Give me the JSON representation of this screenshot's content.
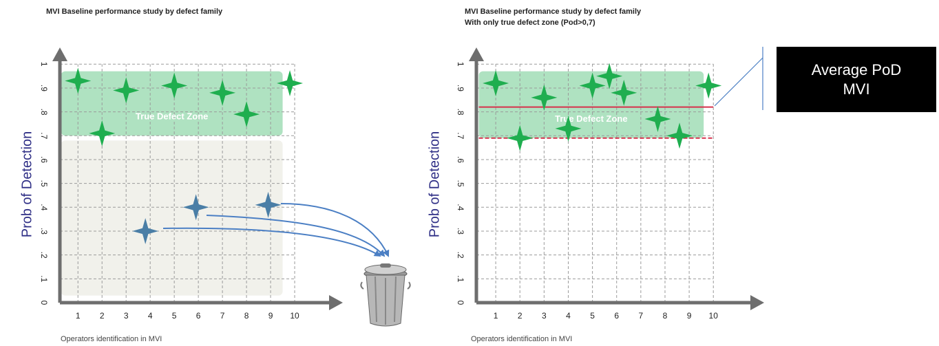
{
  "chart_data": [
    {
      "type": "scatter",
      "title": "MVI Baseline performance study by defect family",
      "x_label": "Operators identification in MVI",
      "y_label": "Prob of Detection",
      "xlim": [
        0.25,
        12
      ],
      "ylim": [
        0,
        1.07
      ],
      "xticks": [
        1,
        2,
        3,
        4,
        5,
        6,
        7,
        8,
        9,
        10
      ],
      "yticks": [
        0,
        {
          "value": 0.1,
          "label": ".1"
        },
        {
          "value": 0.2,
          "label": ".2"
        },
        {
          "value": 0.3,
          "label": ".3"
        },
        {
          "value": 0.4,
          "label": ".4"
        },
        {
          "value": 0.5,
          "label": ".5"
        },
        {
          "value": 0.6,
          "label": ".6"
        },
        {
          "value": 0.7,
          "label": ".7"
        },
        {
          "value": 0.8,
          "label": ".8"
        },
        {
          "value": 0.9,
          "label": ".9"
        },
        1
      ],
      "grid": true,
      "zones": [
        {
          "color": "#f0f0e9",
          "xlim": [
            0.3,
            9.5
          ],
          "ylim": [
            0.03,
            0.68
          ]
        },
        {
          "label": "True Defect Zone",
          "color": "#a6dfba",
          "xlim": [
            0.3,
            9.5
          ],
          "ylim": [
            0.7,
            0.97
          ]
        }
      ],
      "series": [
        {
          "color": "#1fae4f",
          "x": [
            1,
            2,
            3,
            5,
            7,
            8,
            9.8
          ],
          "values": [
            0.93,
            0.71,
            0.89,
            0.91,
            0.88,
            0.79,
            0.92
          ]
        },
        {
          "color": "#4a7ea6",
          "x": [
            3.8,
            5.9,
            8.9
          ],
          "values": [
            0.3,
            0.4,
            0.41
          ]
        }
      ]
    },
    {
      "type": "scatter",
      "title": "MVI Baseline performance study by defect family",
      "subtitle": "With only true defect zone (Pod>0,7)",
      "x_label": "Operators identification in MVI",
      "y_label": "Prob of Detection",
      "xlim": [
        0.2,
        12.1
      ],
      "ylim": [
        0,
        1.07
      ],
      "xticks": [
        1,
        2,
        3,
        4,
        5,
        6,
        7,
        8,
        9,
        10
      ],
      "yticks": [
        0,
        {
          "value": 0.1,
          "label": ".1"
        },
        {
          "value": 0.2,
          "label": ".2"
        },
        {
          "value": 0.3,
          "label": ".3"
        },
        {
          "value": 0.4,
          "label": ".4"
        },
        {
          "value": 0.5,
          "label": ".5"
        },
        {
          "value": 0.6,
          "label": ".6"
        },
        {
          "value": 0.7,
          "label": ".7"
        },
        {
          "value": 0.8,
          "label": ".8"
        },
        {
          "value": 0.9,
          "label": ".9"
        },
        1
      ],
      "grid": true,
      "zones": [
        {
          "label": "True Defect Zone",
          "color": "#a6dfba",
          "xlim": [
            0.3,
            9.6
          ],
          "ylim": [
            0.69,
            0.97
          ]
        }
      ],
      "reference_lines": [
        {
          "value": 0.82,
          "color": "#d6314b",
          "style": "solid",
          "xlim": [
            0.3,
            10
          ]
        },
        {
          "value": 0.69,
          "color": "#d6314b",
          "style": "dashed",
          "xlim": [
            0.3,
            10
          ]
        }
      ],
      "annotation": "Average PoD MVI",
      "series": [
        {
          "color": "#1fae4f",
          "x": [
            1,
            2,
            3,
            4,
            5,
            5.7,
            6.3,
            7.7,
            8.6,
            9.8
          ],
          "values": [
            0.92,
            0.69,
            0.86,
            0.73,
            0.91,
            0.95,
            0.88,
            0.77,
            0.7,
            0.91
          ]
        }
      ]
    }
  ]
}
